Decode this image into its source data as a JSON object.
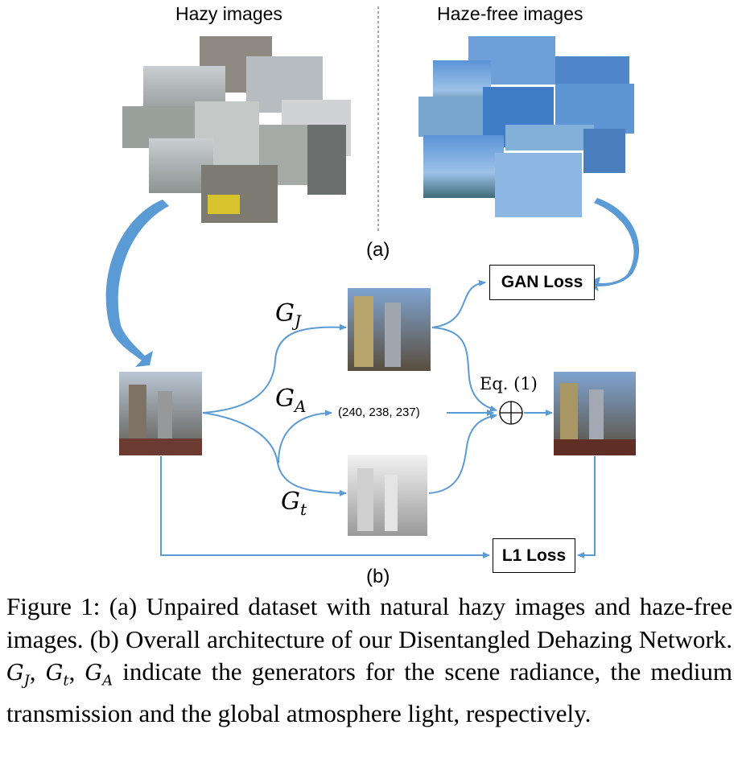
{
  "figure": {
    "header_left": "Hazy images",
    "header_right": "Haze-free images",
    "label_a": "(a)",
    "label_b": "(b)",
    "gan_loss": "GAN Loss",
    "l1_loss": "L1 Loss",
    "eq_label": "Eq. (1)",
    "atmosphere_value": "(240, 238, 237)",
    "gen_j": {
      "main": "G",
      "sub": "J"
    },
    "gen_a": {
      "main": "G",
      "sub": "A"
    },
    "gen_t": {
      "main": "G",
      "sub": "t"
    },
    "plus_symbol": "+"
  },
  "caption": {
    "lead": "Figure 1: (a) Unpaired dataset with natural hazy images and haze-free images. (b) Overall architecture of our Disentangled Dehazing Network.",
    "gj": "G",
    "gj_sub": "J",
    "sep1": ", ",
    "gt": "G",
    "gt_sub": "t",
    "sep2": ", ",
    "ga": "G",
    "ga_sub": "A",
    "tail": " indicate the generators for the scene radiance, the medium transmission and the global atmosphere light, respectively."
  }
}
